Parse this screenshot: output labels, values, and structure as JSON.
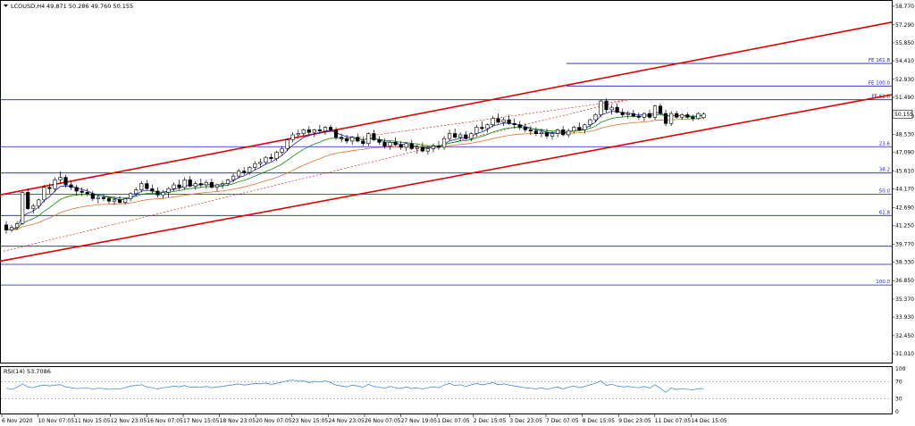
{
  "header": {
    "symbol": "LCOUSD,H4",
    "ohlc": "49.871 50.286 49.760 50.155"
  },
  "current_price": "50.155",
  "rsi": {
    "label": "RSI(14) 53.7086",
    "levels": [
      100,
      70,
      30,
      0
    ],
    "value": 53.7086
  },
  "colors": {
    "channel": "#e00000",
    "level_line": "#1a1ab8",
    "ma_fast": "#1f1fcf",
    "ma_mid": "#0a8a0a",
    "ma_slow": "#e07030",
    "rsi_line": "#4a8fd4",
    "bull": "#ffffff",
    "bear": "#000000"
  },
  "chart_data": {
    "type": "candlestick",
    "symbol": "LCOUSD",
    "timeframe": "H4",
    "y_axis": {
      "range": [
        30.3,
        59.2
      ],
      "ticks": [
        "58.770",
        "57.290",
        "55.850",
        "54.410",
        "52.930",
        "51.490",
        "50.010",
        "48.530",
        "47.090",
        "45.610",
        "44.170",
        "42.690",
        "41.250",
        "39.770",
        "38.330",
        "36.850",
        "35.370",
        "33.930",
        "32.450",
        "31.010"
      ]
    },
    "x_axis": {
      "ticks": [
        "6 Nov 2020",
        "10 Nov 07:05",
        "11 Nov 15:05",
        "12 Nov 23:05",
        "16 Nov 07:05",
        "17 Nov 15:05",
        "18 Nov 23:05",
        "20 Nov 07:05",
        "23 Nov 15:05",
        "24 Nov 23:05",
        "26 Nov 07:05",
        "27 Nov 19:05",
        "1 Dec 07:05",
        "2 Dec 15:05",
        "3 Dec 23:05",
        "7 Dec 07:05",
        "8 Dec 15:05",
        "9 Dec 23:05",
        "11 Dec 07:05",
        "14 Dec 15:05"
      ],
      "bar_count": 130
    },
    "horizontal_levels": [
      {
        "price": 54.2,
        "label": "FE 161.8"
      },
      {
        "price": 52.4,
        "label": "FE 100.0"
      },
      {
        "price": 51.3,
        "label": "FE 61.8"
      },
      {
        "price": 47.55,
        "label": "23.6"
      },
      {
        "price": 45.45,
        "label": "38.2"
      },
      {
        "price": 43.75,
        "label": "50.0"
      },
      {
        "price": 42.05,
        "label": "61.8"
      },
      {
        "price": 39.6,
        "label": ""
      },
      {
        "price": 38.15,
        "label": ""
      },
      {
        "price": 36.5,
        "label": "100.0"
      }
    ],
    "channel": {
      "upper": [
        [
          0,
          43.7
        ],
        [
          165,
          57.6
        ]
      ],
      "lower": [
        [
          0,
          38.4
        ],
        [
          165,
          51.8
        ]
      ]
    },
    "candles": [
      [
        41.3,
        41.6,
        40.6,
        40.9
      ],
      [
        40.9,
        41.3,
        40.7,
        41.1
      ],
      [
        41.1,
        41.6,
        40.9,
        41.4
      ],
      [
        41.4,
        44.0,
        41.3,
        43.9
      ],
      [
        43.9,
        44.2,
        42.5,
        42.6
      ],
      [
        42.6,
        43.0,
        42.2,
        42.8
      ],
      [
        42.8,
        43.4,
        42.6,
        43.3
      ],
      [
        43.3,
        44.5,
        43.1,
        44.3
      ],
      [
        44.3,
        44.6,
        43.8,
        44.2
      ],
      [
        44.2,
        45.1,
        43.9,
        44.9
      ],
      [
        44.9,
        45.6,
        44.6,
        45.1
      ],
      [
        45.1,
        45.3,
        44.3,
        44.5
      ],
      [
        44.5,
        44.8,
        44.1,
        44.3
      ],
      [
        44.3,
        44.5,
        43.7,
        44.0
      ],
      [
        44.0,
        44.3,
        43.6,
        43.9
      ],
      [
        43.9,
        44.2,
        43.6,
        43.8
      ],
      [
        43.8,
        44.0,
        43.2,
        43.4
      ],
      [
        43.4,
        43.7,
        43.0,
        43.5
      ],
      [
        43.5,
        43.8,
        43.2,
        43.4
      ],
      [
        43.4,
        43.6,
        43.0,
        43.2
      ],
      [
        43.2,
        43.5,
        42.9,
        43.3
      ],
      [
        43.3,
        43.6,
        43.0,
        43.1
      ],
      [
        43.1,
        43.5,
        42.9,
        43.4
      ],
      [
        43.4,
        43.9,
        43.2,
        43.8
      ],
      [
        43.8,
        44.3,
        43.6,
        44.1
      ],
      [
        44.1,
        44.8,
        43.9,
        44.6
      ],
      [
        44.6,
        44.9,
        44.1,
        44.2
      ],
      [
        44.2,
        44.5,
        43.8,
        44.0
      ],
      [
        44.0,
        44.3,
        43.5,
        43.7
      ],
      [
        43.7,
        44.1,
        43.4,
        43.9
      ],
      [
        43.9,
        44.3,
        43.5,
        44.2
      ],
      [
        44.2,
        44.7,
        44.0,
        44.5
      ],
      [
        44.5,
        44.9,
        44.1,
        44.3
      ],
      [
        44.3,
        45.1,
        44.1,
        44.9
      ],
      [
        44.9,
        45.2,
        44.3,
        44.4
      ],
      [
        44.4,
        44.8,
        44.1,
        44.6
      ],
      [
        44.6,
        45.0,
        44.3,
        44.5
      ],
      [
        44.5,
        44.9,
        44.2,
        44.7
      ],
      [
        44.7,
        45.0,
        44.2,
        44.3
      ],
      [
        44.3,
        44.6,
        44.0,
        44.5
      ],
      [
        44.5,
        44.8,
        44.2,
        44.6
      ],
      [
        44.6,
        45.0,
        44.4,
        44.9
      ],
      [
        44.9,
        45.4,
        44.7,
        45.2
      ],
      [
        45.2,
        45.8,
        45.0,
        45.6
      ],
      [
        45.6,
        45.9,
        45.3,
        45.5
      ],
      [
        45.5,
        46.0,
        45.3,
        45.9
      ],
      [
        45.9,
        46.4,
        45.7,
        46.2
      ],
      [
        46.2,
        46.6,
        45.9,
        46.3
      ],
      [
        46.3,
        46.8,
        46.1,
        46.7
      ],
      [
        46.7,
        47.0,
        46.4,
        46.6
      ],
      [
        46.6,
        47.2,
        46.4,
        47.1
      ],
      [
        47.1,
        47.6,
        46.9,
        47.4
      ],
      [
        47.4,
        48.2,
        47.2,
        48.1
      ],
      [
        48.1,
        48.7,
        47.9,
        48.5
      ],
      [
        48.5,
        48.9,
        48.2,
        48.6
      ],
      [
        48.6,
        49.0,
        48.4,
        48.9
      ],
      [
        48.9,
        49.2,
        48.5,
        48.7
      ],
      [
        48.7,
        49.0,
        48.3,
        48.9
      ],
      [
        48.9,
        49.3,
        48.6,
        48.8
      ],
      [
        48.8,
        49.2,
        48.5,
        49.1
      ],
      [
        49.1,
        49.3,
        48.7,
        48.9
      ],
      [
        48.9,
        49.1,
        48.1,
        48.3
      ],
      [
        48.3,
        48.6,
        47.9,
        48.2
      ],
      [
        48.2,
        48.5,
        47.8,
        48.0
      ],
      [
        48.0,
        48.4,
        47.7,
        48.3
      ],
      [
        48.3,
        48.6,
        47.9,
        48.0
      ],
      [
        48.0,
        48.3,
        47.6,
        47.8
      ],
      [
        47.8,
        48.7,
        47.6,
        48.6
      ],
      [
        48.6,
        48.9,
        48.0,
        48.1
      ],
      [
        48.1,
        48.4,
        47.7,
        47.9
      ],
      [
        47.9,
        48.2,
        47.4,
        47.6
      ],
      [
        47.6,
        48.0,
        47.3,
        47.9
      ],
      [
        47.9,
        48.3,
        47.6,
        47.7
      ],
      [
        47.7,
        48.0,
        47.3,
        47.5
      ],
      [
        47.5,
        47.9,
        47.2,
        47.8
      ],
      [
        47.8,
        48.1,
        47.3,
        47.4
      ],
      [
        47.4,
        47.7,
        47.0,
        47.5
      ],
      [
        47.5,
        47.9,
        47.1,
        47.2
      ],
      [
        47.2,
        47.6,
        46.9,
        47.4
      ],
      [
        47.4,
        47.8,
        47.1,
        47.6
      ],
      [
        47.6,
        48.0,
        47.3,
        47.5
      ],
      [
        47.5,
        48.4,
        47.3,
        48.2
      ],
      [
        48.2,
        48.9,
        48.0,
        48.6
      ],
      [
        48.6,
        49.0,
        48.2,
        48.3
      ],
      [
        48.3,
        48.7,
        48.0,
        48.5
      ],
      [
        48.5,
        48.8,
        48.1,
        48.2
      ],
      [
        48.2,
        48.7,
        48.0,
        48.6
      ],
      [
        48.6,
        49.3,
        48.4,
        49.1
      ],
      [
        49.1,
        49.6,
        48.8,
        49.0
      ],
      [
        49.0,
        49.4,
        48.7,
        49.3
      ],
      [
        49.3,
        50.0,
        49.1,
        49.8
      ],
      [
        49.8,
        50.2,
        49.4,
        49.5
      ],
      [
        49.5,
        49.9,
        49.2,
        49.7
      ],
      [
        49.7,
        50.1,
        49.3,
        49.4
      ],
      [
        49.4,
        49.8,
        49.0,
        49.3
      ],
      [
        49.3,
        49.6,
        48.9,
        49.1
      ],
      [
        49.1,
        49.4,
        48.7,
        48.9
      ],
      [
        48.9,
        49.2,
        48.5,
        48.8
      ],
      [
        48.8,
        49.1,
        48.4,
        48.6
      ],
      [
        48.6,
        49.0,
        48.3,
        48.7
      ],
      [
        48.7,
        49.0,
        48.2,
        48.4
      ],
      [
        48.4,
        48.8,
        48.1,
        48.6
      ],
      [
        48.6,
        49.0,
        48.3,
        48.9
      ],
      [
        48.9,
        49.2,
        48.4,
        48.5
      ],
      [
        48.5,
        49.0,
        48.3,
        48.8
      ],
      [
        48.8,
        49.2,
        48.6,
        49.1
      ],
      [
        49.1,
        49.5,
        48.8,
        48.9
      ],
      [
        48.9,
        49.4,
        48.6,
        49.3
      ],
      [
        49.3,
        49.8,
        49.1,
        49.7
      ],
      [
        49.7,
        50.2,
        49.5,
        50.1
      ],
      [
        50.1,
        51.3,
        49.9,
        51.2
      ],
      [
        51.2,
        51.4,
        50.3,
        50.5
      ],
      [
        50.5,
        50.9,
        50.1,
        50.7
      ],
      [
        50.7,
        51.0,
        50.2,
        50.3
      ],
      [
        50.3,
        50.6,
        49.9,
        50.1
      ],
      [
        50.1,
        50.4,
        49.8,
        50.2
      ],
      [
        50.2,
        50.5,
        49.9,
        50.0
      ],
      [
        50.0,
        50.3,
        49.7,
        49.9
      ],
      [
        49.9,
        50.3,
        49.6,
        50.2
      ],
      [
        50.2,
        50.5,
        49.8,
        49.9
      ],
      [
        49.9,
        50.9,
        49.7,
        50.8
      ],
      [
        50.8,
        51.0,
        50.1,
        50.2
      ],
      [
        50.2,
        50.5,
        49.2,
        49.4
      ],
      [
        49.4,
        50.4,
        49.2,
        50.2
      ],
      [
        50.2,
        50.4,
        49.8,
        49.9
      ],
      [
        49.9,
        50.2,
        49.7,
        50.1
      ],
      [
        50.1,
        50.3,
        49.8,
        49.9
      ],
      [
        49.9,
        50.1,
        49.6,
        49.8
      ],
      [
        49.8,
        50.3,
        49.7,
        50.2
      ],
      [
        49.871,
        50.286,
        49.76,
        50.155
      ]
    ],
    "ma_fast": {
      "period_label": "",
      "source": "close"
    },
    "rsi_values": [
      55,
      52,
      57,
      65,
      58,
      56,
      60,
      62,
      60,
      62,
      63,
      58,
      56,
      54,
      55,
      56,
      52,
      55,
      54,
      52,
      54,
      53,
      56,
      60,
      61,
      63,
      58,
      56,
      53,
      56,
      57,
      60,
      58,
      61,
      57,
      58,
      57,
      59,
      56,
      58,
      59,
      61,
      63,
      65,
      62,
      64,
      66,
      65,
      67,
      64,
      66,
      69,
      72,
      74,
      71,
      72,
      68,
      71,
      69,
      72,
      68,
      62,
      60,
      58,
      62,
      60,
      57,
      64,
      59,
      57,
      55,
      59,
      56,
      54,
      58,
      54,
      56,
      53,
      56,
      58,
      56,
      62,
      66,
      61,
      63,
      59,
      63,
      66,
      63,
      65,
      68,
      63,
      65,
      62,
      60,
      58,
      56,
      55,
      53,
      56,
      52,
      55,
      58,
      53,
      57,
      60,
      56,
      59,
      63,
      66,
      72,
      61,
      64,
      60,
      58,
      59,
      57,
      56,
      59,
      55,
      63,
      55,
      45,
      55,
      52,
      54,
      52,
      51,
      54,
      53.7
    ]
  }
}
